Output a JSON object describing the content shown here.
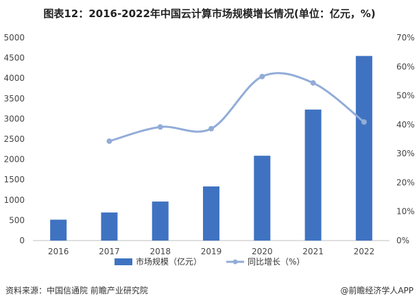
{
  "title": "图表12：2016-2022年中国云计算市场规模增长情况(单位：亿元，%)",
  "source": "资料来源：中国信通院 前瞻产业研究院",
  "brand": "@前瞻经济学人APP",
  "colors": {
    "bar": "#3f73c1",
    "line": "#92acd8"
  },
  "chart_data": {
    "type": "bar",
    "categories": [
      "2016",
      "2017",
      "2018",
      "2019",
      "2020",
      "2021",
      "2022"
    ],
    "series": [
      {
        "name": "市场规模（亿元）",
        "type": "bar",
        "axis": "left",
        "values": [
          515,
          692,
          962,
          1334,
          2091,
          3229,
          4550
        ]
      },
      {
        "name": "同比增长（%）",
        "type": "line",
        "axis": "right",
        "values": [
          null,
          34.3,
          39.2,
          38.6,
          56.6,
          54.4,
          40.9
        ]
      }
    ],
    "y_left": {
      "min": 0,
      "max": 5000,
      "step": 500
    },
    "y_right": {
      "min": 0,
      "max": 70,
      "step": 10,
      "suffix": "%"
    },
    "legend_position": "bottom",
    "grid": false
  }
}
